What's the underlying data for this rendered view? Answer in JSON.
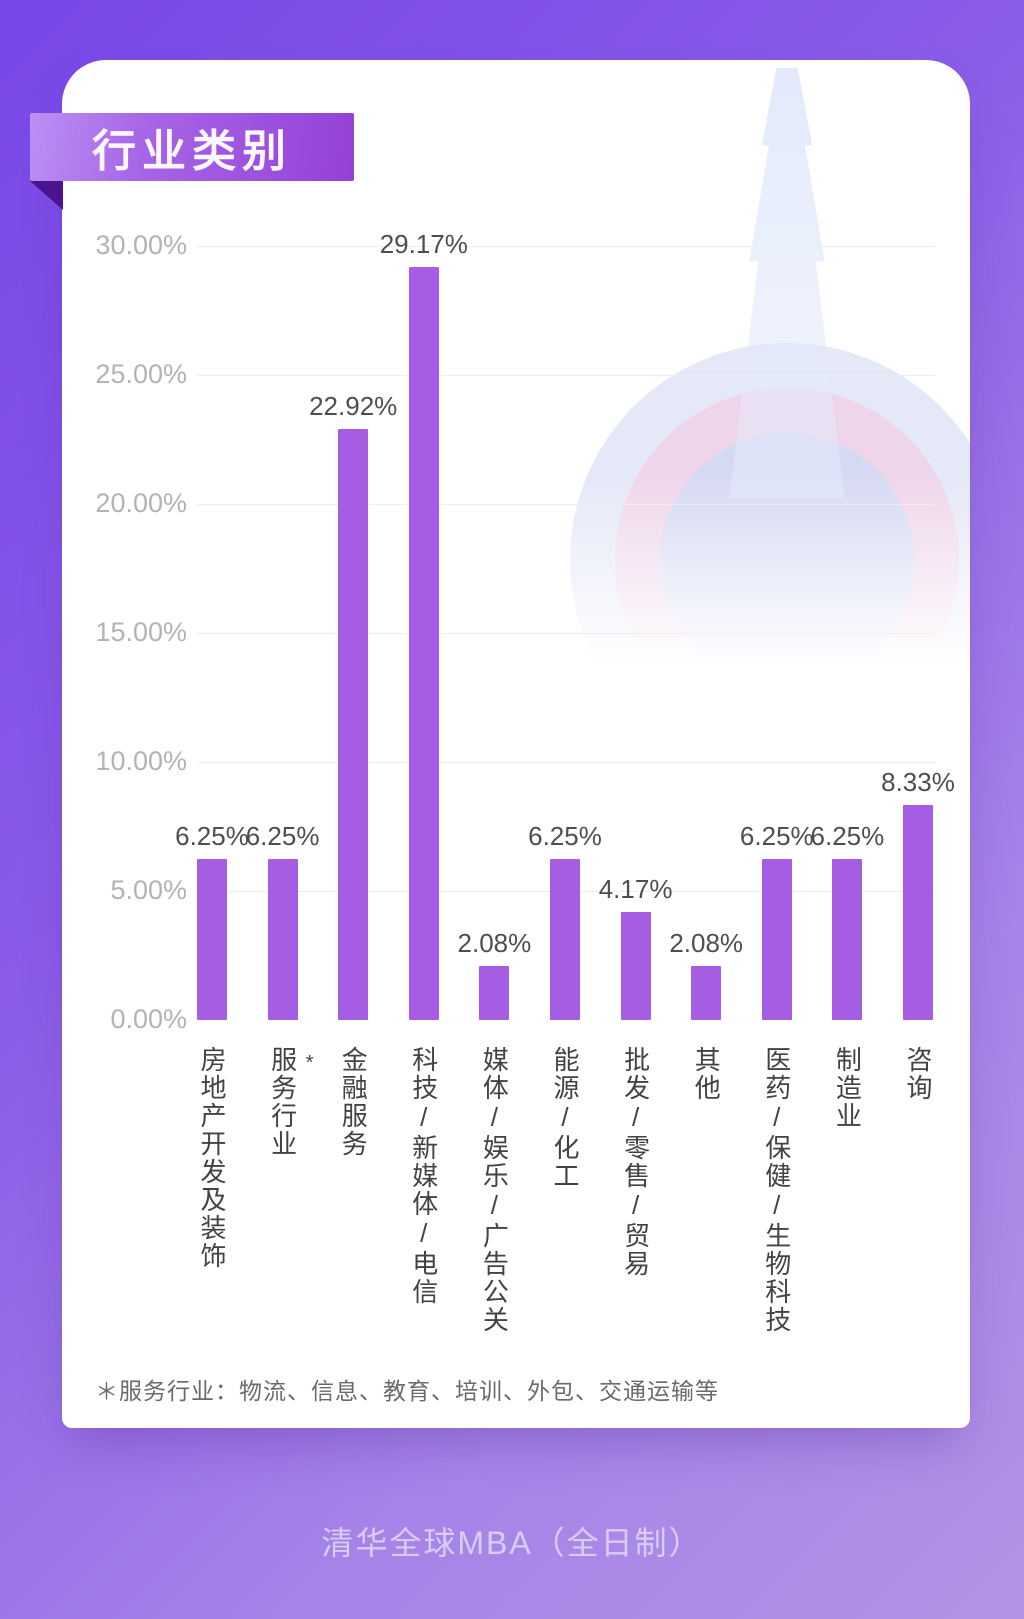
{
  "header": {
    "title": "行业类别"
  },
  "chart_data": {
    "type": "bar",
    "title": "行业类别",
    "categories": [
      {
        "label": "房地产开发及装饰",
        "mark": ""
      },
      {
        "label": "服务行业",
        "mark": "*"
      },
      {
        "label": "金融服务",
        "mark": ""
      },
      {
        "label": "科技/新媒体/电信",
        "mark": ""
      },
      {
        "label": "媒体/娱乐/广告公关",
        "mark": ""
      },
      {
        "label": "能源/化工",
        "mark": ""
      },
      {
        "label": "批发/零售/贸易",
        "mark": ""
      },
      {
        "label": "其他",
        "mark": ""
      },
      {
        "label": "医药/保健/生物科技",
        "mark": ""
      },
      {
        "label": "制造业",
        "mark": ""
      },
      {
        "label": "咨询",
        "mark": ""
      }
    ],
    "values": [
      6.25,
      6.25,
      22.92,
      29.17,
      2.08,
      6.25,
      4.17,
      2.08,
      6.25,
      6.25,
      8.33
    ],
    "value_labels": [
      "6.25%",
      "6.25%",
      "22.92%",
      "29.17%",
      "2.08%",
      "6.25%",
      "4.17%",
      "2.08%",
      "6.25%",
      "6.25%",
      "8.33%"
    ],
    "y_ticks": [
      "30.00%",
      "25.00%",
      "20.00%",
      "15.00%",
      "10.00%",
      "5.00%",
      "0.00%"
    ],
    "ylim": [
      0,
      30
    ],
    "y_step": 5,
    "grid": true,
    "legend": "none",
    "bar_color": "#a55de4",
    "xlabel": "",
    "ylabel": ""
  },
  "footnote": {
    "text": "＊服务行业：物流、信息、教育、培训、外包、交通运输等"
  },
  "footer": {
    "caption": "清华全球MBA（全日制）"
  },
  "colors": {
    "background_start": "#7847e8",
    "background_end": "#b293e6",
    "bar": "#a55de4",
    "badge_start": "#bb91f4",
    "badge_end": "#9441d6",
    "badge_fold": "#4c1390",
    "card": "#ffffff",
    "ytick_text": "#b4b2b8",
    "value_text": "#4e4e52",
    "footer_text": "#d9cdf7"
  }
}
